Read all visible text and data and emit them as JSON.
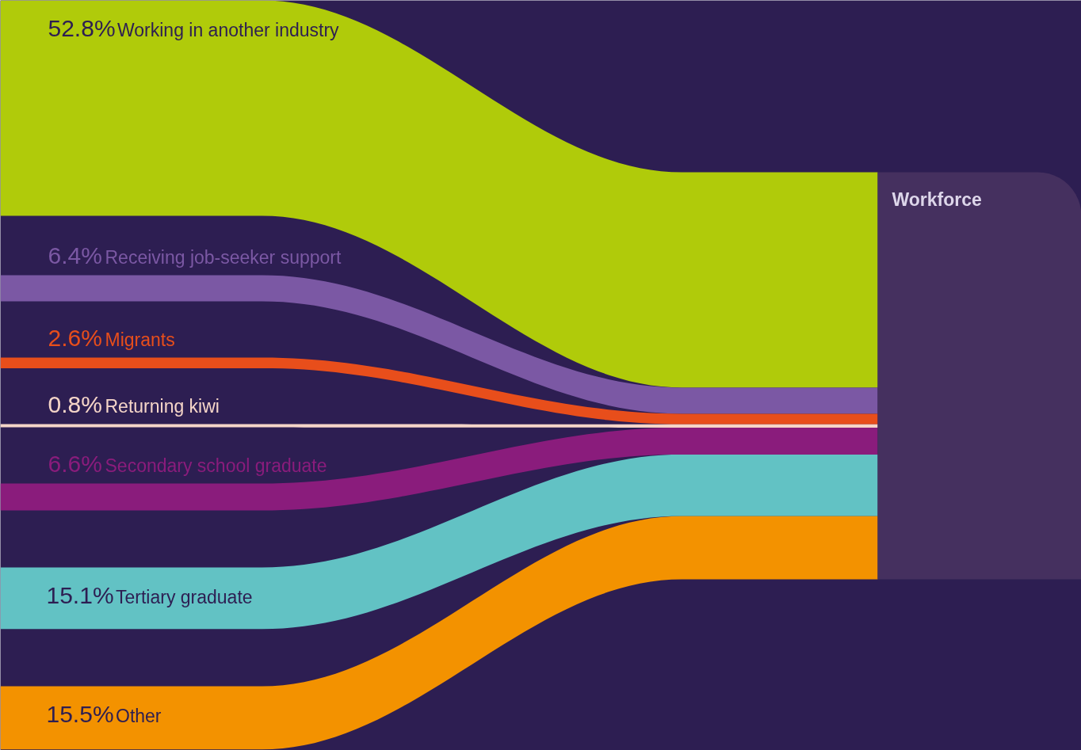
{
  "chart_data": {
    "type": "other",
    "categories": [
      "Working in another industry",
      "Receiving job-seeker support",
      "Migrants",
      "Returning kiwi",
      "Secondary school graduate",
      "Tertiary graduate",
      "Other"
    ],
    "values": [
      52.8,
      6.4,
      2.6,
      0.8,
      6.6,
      15.1,
      15.5
    ],
    "value_labels": [
      "52.8%",
      "6.4%",
      "2.6%",
      "0.8%",
      "6.6%",
      "15.1%",
      "15.5%"
    ],
    "colors": [
      "#b0cb0a",
      "#7b58a4",
      "#e84e1b",
      "#f5d5c8",
      "#8a1c7c",
      "#62c2c4",
      "#f39200"
    ],
    "annotations": [
      "Workforce"
    ]
  }
}
